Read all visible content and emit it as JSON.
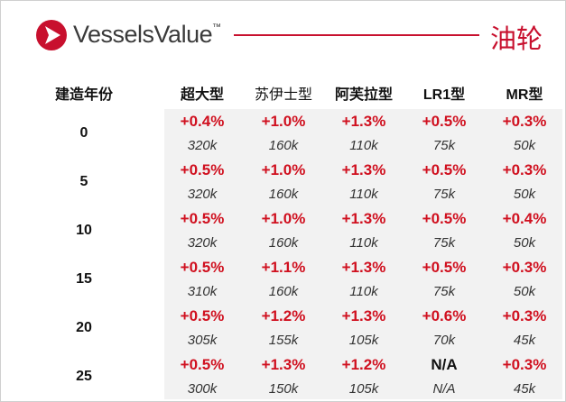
{
  "header": {
    "logo": "VesselsValue",
    "trademark": "™",
    "title": "油轮"
  },
  "table": {
    "columns": [
      "建造年份",
      "超大型",
      "苏伊士型",
      "阿芙拉型",
      "LR1型",
      "MR型"
    ],
    "rows": [
      {
        "age": "0",
        "cells": [
          {
            "change": "+0.4%",
            "value": "320k"
          },
          {
            "change": "+1.0%",
            "value": "160k"
          },
          {
            "change": "+1.3%",
            "value": "110k"
          },
          {
            "change": "+0.5%",
            "value": "75k"
          },
          {
            "change": "+0.3%",
            "value": "50k"
          }
        ]
      },
      {
        "age": "5",
        "cells": [
          {
            "change": "+0.5%",
            "value": "320k"
          },
          {
            "change": "+1.0%",
            "value": "160k"
          },
          {
            "change": "+1.3%",
            "value": "110k"
          },
          {
            "change": "+0.5%",
            "value": "75k"
          },
          {
            "change": "+0.3%",
            "value": "50k"
          }
        ]
      },
      {
        "age": "10",
        "cells": [
          {
            "change": "+0.5%",
            "value": "320k"
          },
          {
            "change": "+1.0%",
            "value": "160k"
          },
          {
            "change": "+1.3%",
            "value": "110k"
          },
          {
            "change": "+0.5%",
            "value": "75k"
          },
          {
            "change": "+0.4%",
            "value": "50k"
          }
        ]
      },
      {
        "age": "15",
        "cells": [
          {
            "change": "+0.5%",
            "value": "310k"
          },
          {
            "change": "+1.1%",
            "value": "160k"
          },
          {
            "change": "+1.3%",
            "value": "110k"
          },
          {
            "change": "+0.5%",
            "value": "75k"
          },
          {
            "change": "+0.3%",
            "value": "50k"
          }
        ]
      },
      {
        "age": "20",
        "cells": [
          {
            "change": "+0.5%",
            "value": "305k"
          },
          {
            "change": "+1.2%",
            "value": "155k"
          },
          {
            "change": "+1.3%",
            "value": "105k"
          },
          {
            "change": "+0.6%",
            "value": "70k"
          },
          {
            "change": "+0.3%",
            "value": "45k"
          }
        ]
      },
      {
        "age": "25",
        "cells": [
          {
            "change": "+0.5%",
            "value": "300k"
          },
          {
            "change": "+1.3%",
            "value": "150k"
          },
          {
            "change": "+1.2%",
            "value": "105k"
          },
          {
            "change": "N/A",
            "value": "N/A"
          },
          {
            "change": "+0.3%",
            "value": "45k"
          }
        ]
      }
    ]
  }
}
